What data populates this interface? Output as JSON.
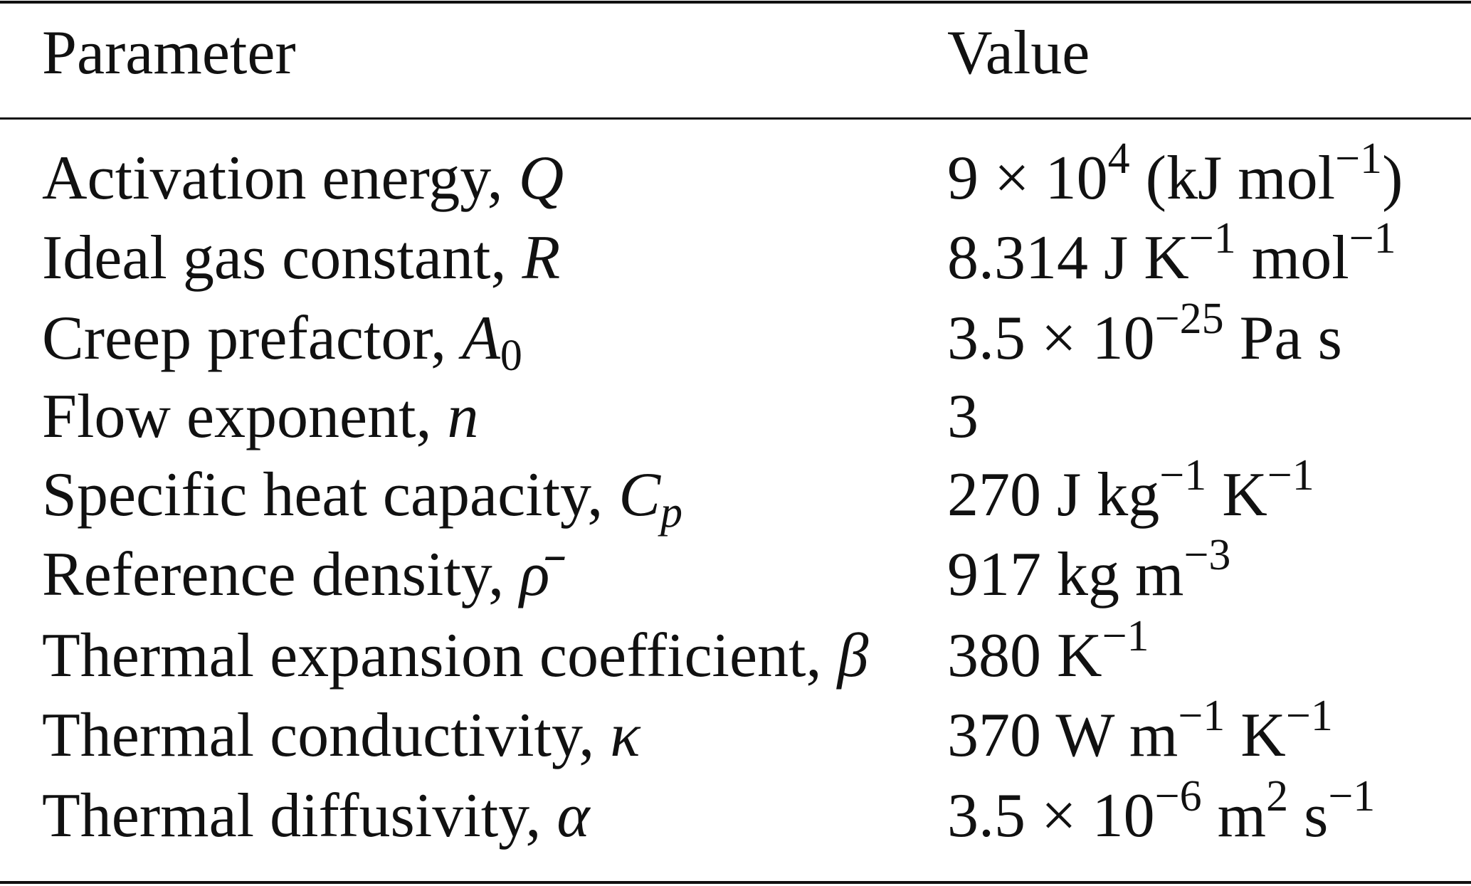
{
  "header": {
    "parameter": "Parameter",
    "value": "Value"
  },
  "rows": [
    {
      "name": "Activation energy, ",
      "symbol": [
        {
          "t": "Q"
        }
      ],
      "value": [
        {
          "t": "9 × 10"
        },
        {
          "t": "4",
          "sup": true
        },
        {
          "t": " (kJ mol"
        },
        {
          "t": "−1",
          "sup": true
        },
        {
          "t": ")"
        }
      ]
    },
    {
      "name": "Ideal gas constant, ",
      "symbol": [
        {
          "t": "R"
        }
      ],
      "value": [
        {
          "t": "8.314 J K"
        },
        {
          "t": "−1",
          "sup": true
        },
        {
          "t": " mol"
        },
        {
          "t": "−1",
          "sup": true
        }
      ]
    },
    {
      "name": "Creep prefactor, ",
      "symbol": [
        {
          "t": "A"
        },
        {
          "t": "0",
          "sub": true,
          "upright": true
        }
      ],
      "value": [
        {
          "t": "3.5 × 10"
        },
        {
          "t": "−25",
          "sup": true
        },
        {
          "t": " Pa s"
        }
      ]
    },
    {
      "name": "Flow exponent, ",
      "symbol": [
        {
          "t": "n"
        }
      ],
      "value": [
        {
          "t": "3"
        }
      ]
    },
    {
      "name": "Specific heat capacity, ",
      "symbol": [
        {
          "t": "C"
        },
        {
          "t": "p",
          "sub": true
        }
      ],
      "value": [
        {
          "t": "270 J kg"
        },
        {
          "t": "−1",
          "sup": true
        },
        {
          "t": " K"
        },
        {
          "t": "−1",
          "sup": true
        }
      ]
    },
    {
      "name": "Reference density, ",
      "symbol": [
        {
          "t": "ρ̄"
        }
      ],
      "value": [
        {
          "t": "917 kg m"
        },
        {
          "t": "−3",
          "sup": true
        }
      ]
    },
    {
      "name": "Thermal expansion coefficient, ",
      "symbol": [
        {
          "t": "β"
        }
      ],
      "value": [
        {
          "t": "380 K"
        },
        {
          "t": "−1",
          "sup": true
        }
      ]
    },
    {
      "name": "Thermal conductivity, ",
      "symbol": [
        {
          "t": "κ"
        }
      ],
      "value": [
        {
          "t": "370 W m"
        },
        {
          "t": "−1",
          "sup": true
        },
        {
          "t": " K"
        },
        {
          "t": "−1",
          "sup": true
        }
      ]
    },
    {
      "name": "Thermal diffusivity, ",
      "symbol": [
        {
          "t": "α"
        }
      ],
      "value": [
        {
          "t": "3.5 × 10"
        },
        {
          "t": "−6",
          "sup": true
        },
        {
          "t": " m"
        },
        {
          "t": "2",
          "sup": true
        },
        {
          "t": " s"
        },
        {
          "t": "−1",
          "sup": true
        }
      ]
    }
  ]
}
